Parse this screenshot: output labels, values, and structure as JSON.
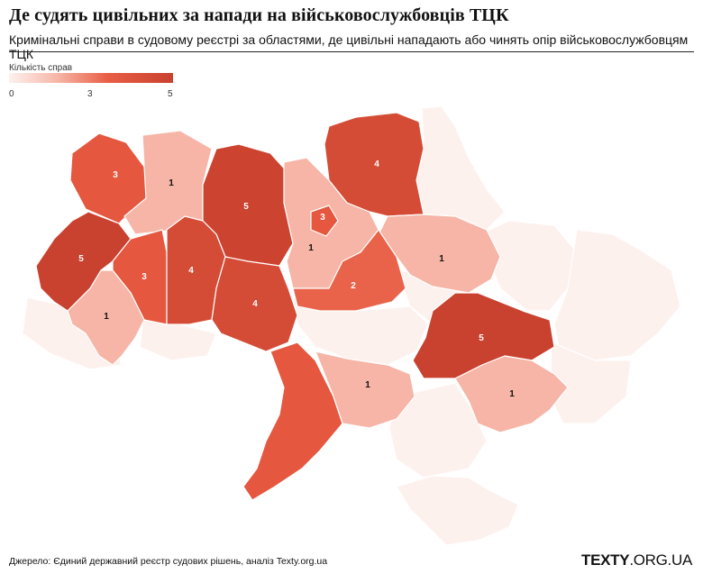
{
  "header": {
    "title": "Де судять цивільних за напади на військовослужбовців ТЦК",
    "subtitle": "Кримінальні справи в судовому реєстрі за областями, де цивільні нападають або чинять опір військовослужбовцям ТЦК"
  },
  "legend": {
    "title": "Кількість справ",
    "ticks": [
      "0",
      "3",
      "5"
    ],
    "colors": {
      "min": "#fdf1ee",
      "mid": "#e85e45",
      "max": "#c9412f"
    }
  },
  "map_data": {
    "type": "choropleth",
    "unit": "кількість справ",
    "labeled_regions": [
      {
        "id": "volyn",
        "value": 3
      },
      {
        "id": "rivne",
        "value": 1
      },
      {
        "id": "zhytomyr",
        "value": 5
      },
      {
        "id": "kyiv-city",
        "value": 3
      },
      {
        "id": "kyiv-oblast",
        "value": 1
      },
      {
        "id": "chernihiv",
        "value": 4
      },
      {
        "id": "sumy",
        "value": 1
      },
      {
        "id": "lviv",
        "value": 5
      },
      {
        "id": "ternopil",
        "value": 3
      },
      {
        "id": "khmelnytskyi",
        "value": 4
      },
      {
        "id": "vinnytsia",
        "value": 4
      },
      {
        "id": "cherkasy",
        "value": 2
      },
      {
        "id": "zakarpattia",
        "value": 1
      },
      {
        "id": "dnipropetrovsk",
        "value": 5
      },
      {
        "id": "mykolaiv",
        "value": 1
      },
      {
        "id": "zaporizhzhia",
        "value": 1
      }
    ],
    "label_values": {
      "volyn": "3",
      "rivne": "1",
      "zhytomyr": "5",
      "kyiv-city": "3",
      "kyiv-oblast": "1",
      "chernihiv": "4",
      "sumy": "1",
      "lviv": "5",
      "ternopil": "3",
      "khmelnytskyi": "4",
      "vinnytsia": "4",
      "cherkasy": "2",
      "zakarpattia": "1",
      "dnipropetrovsk": "5",
      "mykolaiv": "1",
      "zaporizhzhia": "1"
    }
  },
  "footer": {
    "source": "Джерело: Єдиний державний реєстр судових рішень, аналіз Texty.org.ua",
    "logo_bold": "TEXTY",
    "logo_light": ".ORG.UA"
  }
}
